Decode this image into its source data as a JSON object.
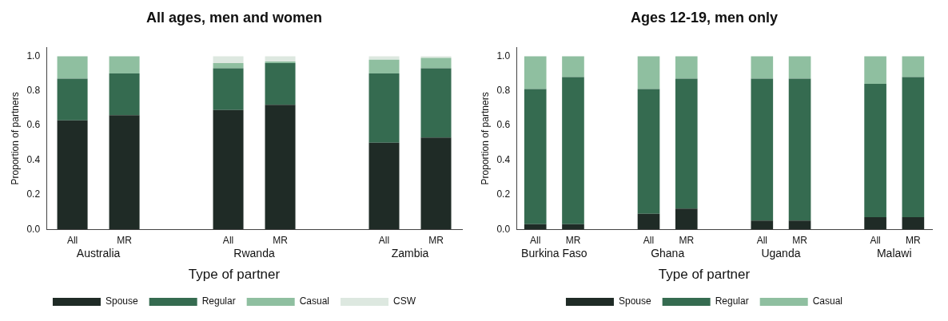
{
  "chart_data": [
    {
      "type": "bar",
      "title": "All ages, men and women",
      "ylabel": "Proportion of partners",
      "legend_title": "Type of partner",
      "legend": "bottom",
      "stacked": true,
      "grid": false,
      "categories": [
        "All",
        "MR",
        null,
        "All",
        "MR",
        null,
        "All",
        "MR"
      ],
      "annotations": [
        "Australia",
        "Rwanda",
        "Zambia"
      ],
      "ylim": [
        0,
        1.05
      ],
      "yticks": [
        {
          "value": 0,
          "label": "0.0"
        },
        {
          "value": 0.2,
          "label": "0.2"
        },
        {
          "value": 0.4,
          "label": "0.4"
        },
        {
          "value": 0.6,
          "label": "0.6"
        },
        {
          "value": 0.8,
          "label": "0.8"
        },
        {
          "value": 1,
          "label": "1.0"
        }
      ],
      "series": [
        {
          "name": "Spouse",
          "color": "#1f2b26",
          "values": [
            0.63,
            0.66,
            null,
            0.69,
            0.72,
            null,
            0.5,
            0.53
          ]
        },
        {
          "name": "Regular",
          "color": "#356b50",
          "values": [
            0.24,
            0.24,
            null,
            0.24,
            0.24,
            null,
            0.4,
            0.4
          ]
        },
        {
          "name": "Casual",
          "color": "#8fbfa0",
          "values": [
            0.13,
            0.1,
            null,
            0.03,
            0.01,
            null,
            0.08,
            0.06
          ]
        },
        {
          "name": "CSW",
          "color": "#dde8e0",
          "values": [
            0,
            0,
            null,
            0.04,
            0.03,
            null,
            0.02,
            0.01
          ]
        }
      ]
    },
    {
      "type": "bar",
      "title": "Ages 12-19, men only",
      "ylabel": "Proportion of partners",
      "legend_title": "Type of partner",
      "legend": "bottom",
      "stacked": true,
      "grid": false,
      "categories": [
        "All",
        "MR",
        null,
        "All",
        "MR",
        null,
        "All",
        "MR",
        null,
        "All",
        "MR"
      ],
      "annotations": [
        "Burkina Faso",
        "Ghana",
        "Uganda",
        "Malawi"
      ],
      "ylim": [
        0,
        1.05
      ],
      "yticks": [
        {
          "value": 0,
          "label": "0.0"
        },
        {
          "value": 0.2,
          "label": "0.2"
        },
        {
          "value": 0.4,
          "label": "0.4"
        },
        {
          "value": 0.6,
          "label": "0.6"
        },
        {
          "value": 0.8,
          "label": "0.8"
        },
        {
          "value": 1,
          "label": "1.0"
        }
      ],
      "series": [
        {
          "name": "Spouse",
          "color": "#1f2b26",
          "values": [
            0.03,
            0.03,
            null,
            0.09,
            0.12,
            null,
            0.05,
            0.05,
            null,
            0.07,
            0.07
          ]
        },
        {
          "name": "Regular",
          "color": "#356b50",
          "values": [
            0.78,
            0.85,
            null,
            0.72,
            0.75,
            null,
            0.82,
            0.82,
            null,
            0.77,
            0.81
          ]
        },
        {
          "name": "Casual",
          "color": "#8fbfa0",
          "values": [
            0.19,
            0.12,
            null,
            0.19,
            0.13,
            null,
            0.13,
            0.13,
            null,
            0.16,
            0.12
          ]
        }
      ]
    }
  ]
}
